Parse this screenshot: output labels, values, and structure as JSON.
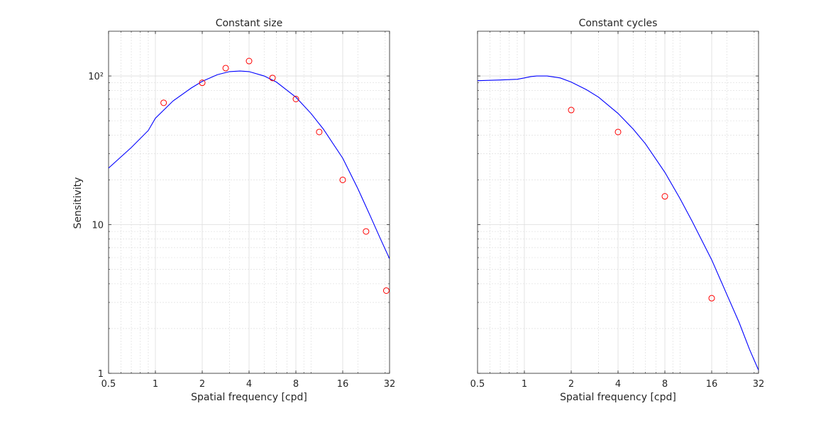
{
  "figure": {
    "ylabel": "Sensitivity"
  },
  "chart_data": [
    {
      "type": "line",
      "title": "Constant size",
      "xlabel": "Spatial frequency [cpd]",
      "ylabel": "Sensitivity",
      "xscale": "log",
      "yscale": "log",
      "xlim": [
        0.5,
        32
      ],
      "ylim": [
        1,
        200
      ],
      "xticks": [
        0.5,
        1,
        2,
        4,
        8,
        16,
        32
      ],
      "xtick_labels": [
        "0.5",
        "1",
        "2",
        "4",
        "8",
        "16",
        "32"
      ],
      "yticks": [
        1,
        10,
        100
      ],
      "ytick_labels": [
        "1",
        "10",
        "10²"
      ],
      "grid": true,
      "series": [
        {
          "kind": "line",
          "color": "#0000ff",
          "x": [
            0.5,
            0.7,
            0.9,
            1.0,
            1.3,
            1.7,
            2.0,
            2.5,
            3.0,
            3.5,
            4.0,
            5.0,
            6.0,
            8.0,
            10.0,
            12.0,
            16.0,
            20.0,
            24.0,
            28.0,
            32.0
          ],
          "y": [
            24,
            33,
            43,
            52,
            68,
            83,
            92,
            102,
            107,
            108,
            107,
            100,
            91,
            72,
            56,
            44,
            28,
            17.5,
            11.5,
            8.0,
            5.9
          ]
        },
        {
          "kind": "scatter",
          "marker": "circle-open",
          "color": "#ff0000",
          "x": [
            1.13,
            2.0,
            2.83,
            4.0,
            5.66,
            8.0,
            11.3,
            16.0,
            22.6,
            30.5
          ],
          "y": [
            66,
            90,
            113,
            126,
            97,
            70,
            42,
            20,
            9.0,
            3.6
          ]
        }
      ]
    },
    {
      "type": "line",
      "title": "Constant cycles",
      "xlabel": "Spatial frequency [cpd]",
      "ylabel": "",
      "xscale": "log",
      "yscale": "log",
      "xlim": [
        0.5,
        32
      ],
      "ylim": [
        1,
        200
      ],
      "xticks": [
        0.5,
        1,
        2,
        4,
        8,
        16,
        32
      ],
      "xtick_labels": [
        "0.5",
        "1",
        "2",
        "4",
        "8",
        "16",
        "32"
      ],
      "yticks": [
        1,
        10,
        100
      ],
      "ytick_labels": [
        "",
        "",
        ""
      ],
      "grid": true,
      "series": [
        {
          "kind": "line",
          "color": "#0000ff",
          "x": [
            0.5,
            0.7,
            0.9,
            1.0,
            1.1,
            1.2,
            1.4,
            1.7,
            2.0,
            2.5,
            3.0,
            4.0,
            5.0,
            6.0,
            8.0,
            10.0,
            12.0,
            16.0,
            20.0,
            24.0,
            28.0,
            32.0
          ],
          "y": [
            93,
            94,
            95,
            97,
            99,
            100,
            100,
            97,
            91,
            81,
            72,
            56,
            44,
            35,
            22.5,
            15,
            10.5,
            5.8,
            3.4,
            2.2,
            1.45,
            1.05
          ]
        },
        {
          "kind": "scatter",
          "marker": "circle-open",
          "color": "#ff0000",
          "x": [
            2.0,
            4.0,
            8.0,
            16.0
          ],
          "y": [
            59,
            42,
            15.5,
            3.2
          ]
        }
      ]
    }
  ]
}
